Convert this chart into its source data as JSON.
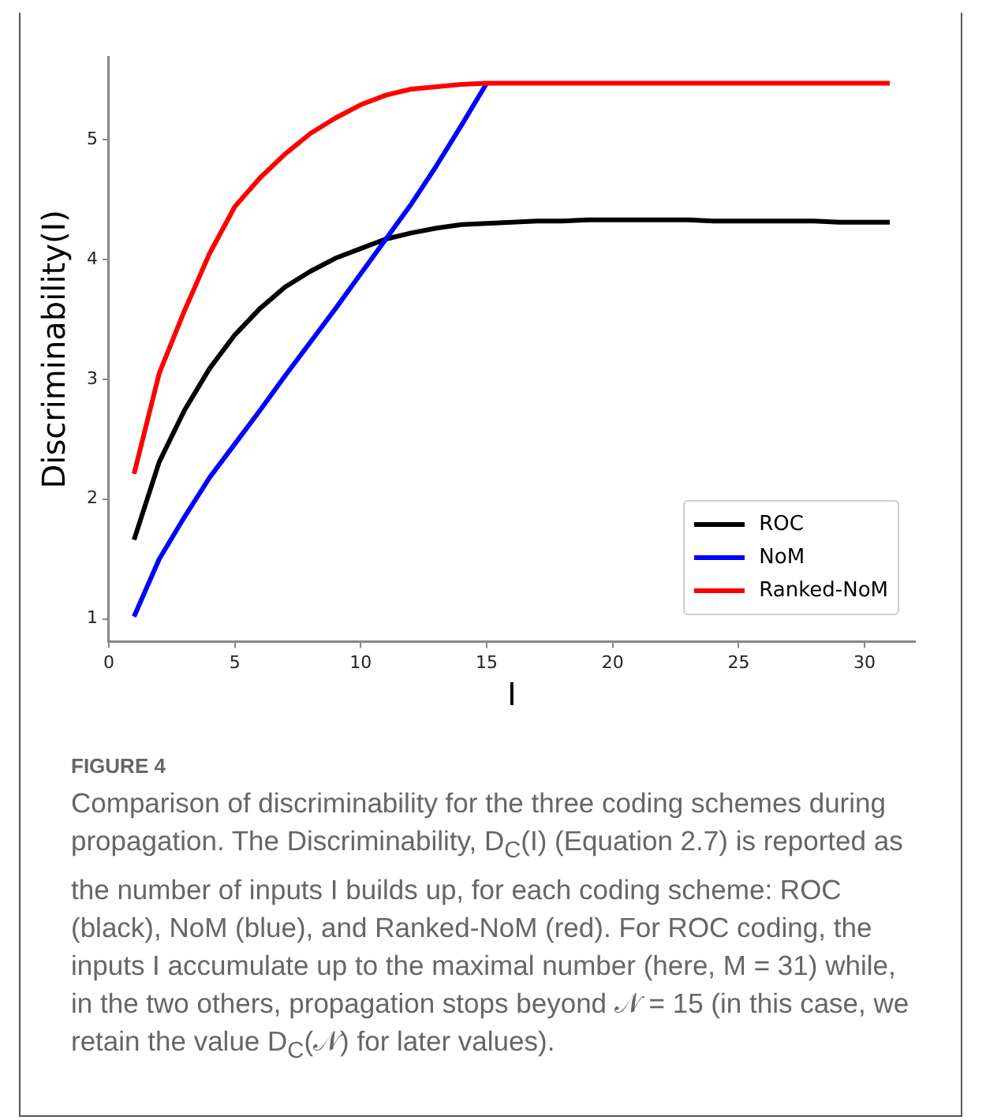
{
  "chart_data": {
    "type": "line",
    "xlabel": "I",
    "ylabel": "Discriminability(I)",
    "x": [
      1,
      2,
      3,
      4,
      5,
      6,
      7,
      8,
      9,
      10,
      11,
      12,
      13,
      14,
      15,
      16,
      17,
      18,
      19,
      20,
      21,
      22,
      23,
      24,
      25,
      26,
      27,
      28,
      29,
      30,
      31
    ],
    "series": [
      {
        "name": "ROC",
        "color": "#000000",
        "values": [
          1.66,
          2.31,
          2.74,
          3.09,
          3.37,
          3.59,
          3.77,
          3.9,
          4.01,
          4.09,
          4.17,
          4.22,
          4.26,
          4.29,
          4.3,
          4.31,
          4.32,
          4.32,
          4.33,
          4.33,
          4.33,
          4.33,
          4.33,
          4.32,
          4.32,
          4.32,
          4.32,
          4.32,
          4.31,
          4.31,
          4.31
        ]
      },
      {
        "name": "NoM",
        "color": "#0000ff",
        "values": [
          1.02,
          1.5,
          1.85,
          2.18,
          2.46,
          2.74,
          3.03,
          3.31,
          3.59,
          3.88,
          4.17,
          4.46,
          4.78,
          5.12,
          5.47,
          null,
          null,
          null,
          null,
          null,
          null,
          null,
          null,
          null,
          null,
          null,
          null,
          null,
          null,
          null,
          null
        ]
      },
      {
        "name": "Ranked-NoM",
        "color": "#ff0000",
        "values": [
          2.21,
          3.05,
          3.57,
          4.05,
          4.44,
          4.68,
          4.88,
          5.05,
          5.18,
          5.29,
          5.37,
          5.42,
          5.44,
          5.46,
          5.47,
          5.47,
          5.47,
          5.47,
          5.47,
          5.47,
          5.47,
          5.47,
          5.47,
          5.47,
          5.47,
          5.47,
          5.47,
          5.47,
          5.47,
          5.47,
          5.47
        ]
      }
    ],
    "xlim": [
      0,
      32
    ],
    "xticks": [
      0,
      5,
      10,
      15,
      20,
      25,
      30
    ],
    "ylim": [
      0.81,
      5.69
    ],
    "yticks": [
      1,
      2,
      3,
      4,
      5
    ],
    "grid": false,
    "legend": "bottom right",
    "line_style": "solid",
    "annotations": [
      "FIGURE 4",
      "Comparison of discriminability for the three coding schemes during propagation. The Discriminability, D$_{C}$(I) (Equation 2.7) is reported as the number of inputs I builds up, for each coding scheme: ROC (black), NoM (blue), and Ranked-NoM (red). For ROC coding, the inputs I accumulate up to the maximal number (here, M = 31) while, in the two others, propagation stops beyond 𝒩 = 15 (in this case, we retain the value D$_{C}$(𝒩) for later values)."
    ]
  }
}
